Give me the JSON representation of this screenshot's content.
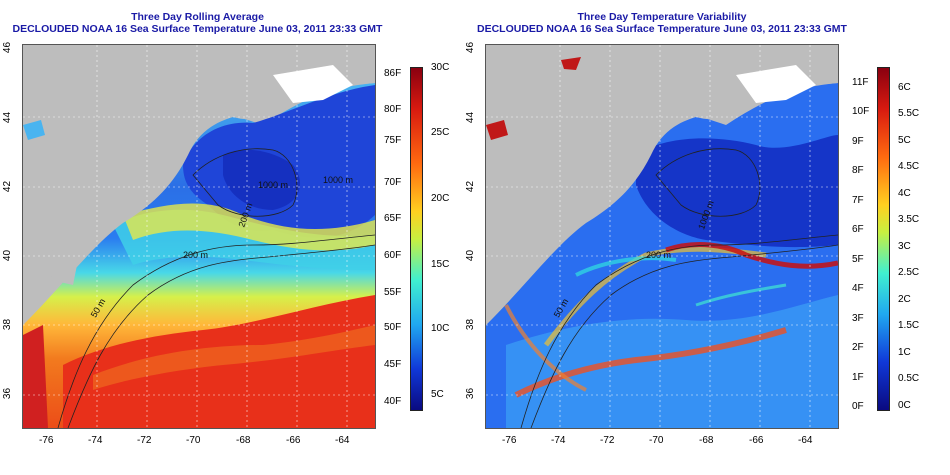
{
  "left_panel": {
    "title": "Three Day Rolling Average",
    "subtitle": "DECLOUDED NOAA 16 Sea Surface Temperature June 03, 2011 23:33 GMT",
    "contour_labels": [
      "200 m",
      "50 m",
      "1000 m",
      "1000 m",
      "200 m"
    ],
    "colorbar": {
      "left_labels": [
        "86F",
        "80F",
        "75F",
        "70F",
        "65F",
        "60F",
        "55F",
        "50F",
        "45F",
        "40F"
      ],
      "right_labels": [
        "30C",
        "25C",
        "20C",
        "15C",
        "10C",
        "5C"
      ]
    }
  },
  "right_panel": {
    "title": "Three Day Temperature Variability",
    "subtitle": "DECLOUDED NOAA 16 Sea Surface Temperature June 03, 2011 23:33 GMT",
    "contour_labels": [
      "200 m",
      "50 m",
      "1000 m"
    ],
    "colorbar": {
      "left_labels": [
        "11F",
        "10F",
        "9F",
        "8F",
        "7F",
        "6F",
        "5F",
        "4F",
        "3F",
        "2F",
        "1F",
        "0F"
      ],
      "right_labels": [
        "6C",
        "5.5C",
        "5C",
        "4.5C",
        "4C",
        "3.5C",
        "3C",
        "2.5C",
        "2C",
        "1.5C",
        "1C",
        "0.5C",
        "0C"
      ]
    }
  },
  "axes": {
    "x_ticks": [
      "-76",
      "-74",
      "-72",
      "-70",
      "-68",
      "-66",
      "-64"
    ],
    "y_ticks": [
      "46",
      "44",
      "42",
      "40",
      "38",
      "36"
    ]
  },
  "colors": {
    "title": "#1a1aa6",
    "land": "#bdbdbd",
    "cold": "#0a1fb0",
    "warm": "#e8401a",
    "hot": "#b00010"
  }
}
